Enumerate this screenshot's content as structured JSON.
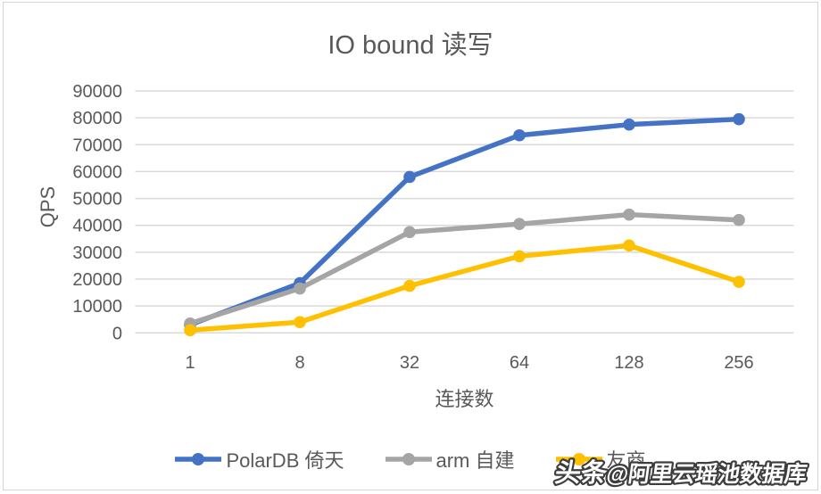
{
  "chart": {
    "title": "IO bound 读写",
    "x_axis_title": "连接数",
    "y_axis_title": "QPS"
  },
  "chart_data": {
    "type": "line",
    "categories": [
      "1",
      "8",
      "32",
      "64",
      "128",
      "256"
    ],
    "series": [
      {
        "name": "PolarDB 倚天",
        "color": "#4472C4",
        "values": [
          3000,
          18500,
          58000,
          73500,
          77500,
          79500
        ]
      },
      {
        "name": "arm 自建",
        "color": "#A5A5A5",
        "values": [
          3500,
          16500,
          37500,
          40500,
          44000,
          42000
        ]
      },
      {
        "name": "友商",
        "color": "#FFC000",
        "values": [
          1000,
          4000,
          17500,
          28500,
          32500,
          19000
        ]
      }
    ],
    "ylim": [
      0,
      90000
    ],
    "y_tick_step": 10000,
    "y_tick_labels": [
      "0",
      "10000",
      "20000",
      "30000",
      "40000",
      "50000",
      "60000",
      "70000",
      "80000",
      "90000"
    ],
    "grid": true,
    "legend_position": "bottom"
  },
  "watermark": {
    "prefix": "头条",
    "handle": "@阿里云瑶池数据库"
  },
  "colors": {
    "text": "#595959",
    "gridline": "#D9D9D9",
    "background": "#FFFFFF",
    "border": "#D6D6D6"
  }
}
